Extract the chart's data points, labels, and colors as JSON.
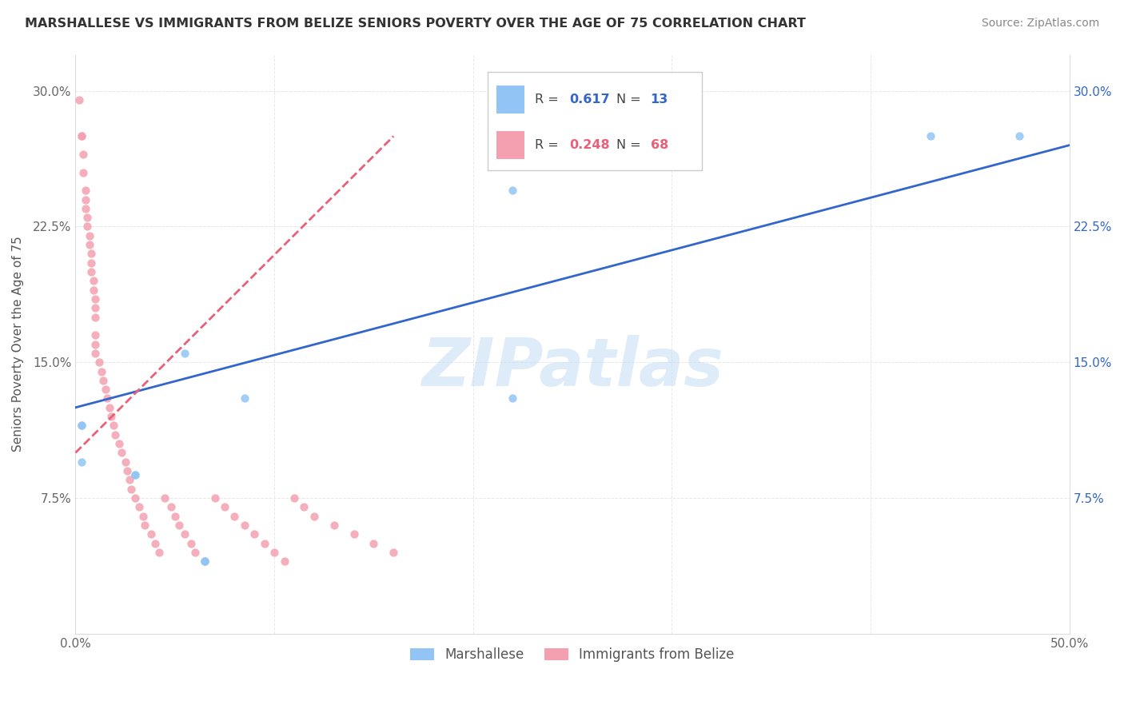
{
  "title": "MARSHALLESE VS IMMIGRANTS FROM BELIZE SENIORS POVERTY OVER THE AGE OF 75 CORRELATION CHART",
  "source": "Source: ZipAtlas.com",
  "ylabel": "Seniors Poverty Over the Age of 75",
  "watermark": "ZIPatlas",
  "xlim": [
    0.0,
    0.5
  ],
  "ylim": [
    0.0,
    0.32
  ],
  "x_tick_pos": [
    0.0,
    0.1,
    0.2,
    0.3,
    0.4,
    0.5
  ],
  "x_tick_labels": [
    "0.0%",
    "",
    "",
    "",
    "",
    "50.0%"
  ],
  "y_tick_pos": [
    0.0,
    0.075,
    0.15,
    0.225,
    0.3
  ],
  "y_tick_labels": [
    "",
    "7.5%",
    "15.0%",
    "22.5%",
    "30.0%"
  ],
  "marshallese_color": "#92C5F5",
  "belize_color": "#F4A0B0",
  "marshallese_line_color": "#3366CC",
  "belize_line_color": "#E8607A",
  "legend_R_marshallese": "0.617",
  "legend_N_marshallese": "13",
  "legend_R_belize": "0.248",
  "legend_N_belize": "68",
  "marshallese_x": [
    0.003,
    0.003,
    0.003,
    0.055,
    0.065,
    0.065,
    0.085,
    0.22,
    0.22,
    0.43,
    0.475,
    0.03,
    0.03
  ],
  "marshallese_y": [
    0.115,
    0.095,
    0.115,
    0.155,
    0.04,
    0.04,
    0.13,
    0.245,
    0.13,
    0.275,
    0.275,
    0.088,
    0.088
  ],
  "belize_x": [
    0.002,
    0.003,
    0.003,
    0.004,
    0.004,
    0.005,
    0.005,
    0.005,
    0.006,
    0.006,
    0.007,
    0.007,
    0.008,
    0.008,
    0.008,
    0.009,
    0.009,
    0.01,
    0.01,
    0.01,
    0.01,
    0.01,
    0.01,
    0.012,
    0.013,
    0.014,
    0.015,
    0.016,
    0.017,
    0.018,
    0.019,
    0.02,
    0.022,
    0.023,
    0.025,
    0.026,
    0.027,
    0.028,
    0.03,
    0.032,
    0.034,
    0.035,
    0.038,
    0.04,
    0.042,
    0.045,
    0.048,
    0.05,
    0.052,
    0.055,
    0.058,
    0.06,
    0.065,
    0.07,
    0.075,
    0.08,
    0.085,
    0.09,
    0.095,
    0.1,
    0.105,
    0.11,
    0.115,
    0.12,
    0.13,
    0.14,
    0.15,
    0.16
  ],
  "belize_y": [
    0.295,
    0.275,
    0.275,
    0.265,
    0.255,
    0.245,
    0.24,
    0.235,
    0.23,
    0.225,
    0.22,
    0.215,
    0.21,
    0.205,
    0.2,
    0.195,
    0.19,
    0.185,
    0.18,
    0.175,
    0.165,
    0.16,
    0.155,
    0.15,
    0.145,
    0.14,
    0.135,
    0.13,
    0.125,
    0.12,
    0.115,
    0.11,
    0.105,
    0.1,
    0.095,
    0.09,
    0.085,
    0.08,
    0.075,
    0.07,
    0.065,
    0.06,
    0.055,
    0.05,
    0.045,
    0.075,
    0.07,
    0.065,
    0.06,
    0.055,
    0.05,
    0.045,
    0.04,
    0.075,
    0.07,
    0.065,
    0.06,
    0.055,
    0.05,
    0.045,
    0.04,
    0.075,
    0.07,
    0.065,
    0.06,
    0.055,
    0.05,
    0.045
  ],
  "background_color": "#FFFFFF",
  "grid_color": "#E8E8E8"
}
